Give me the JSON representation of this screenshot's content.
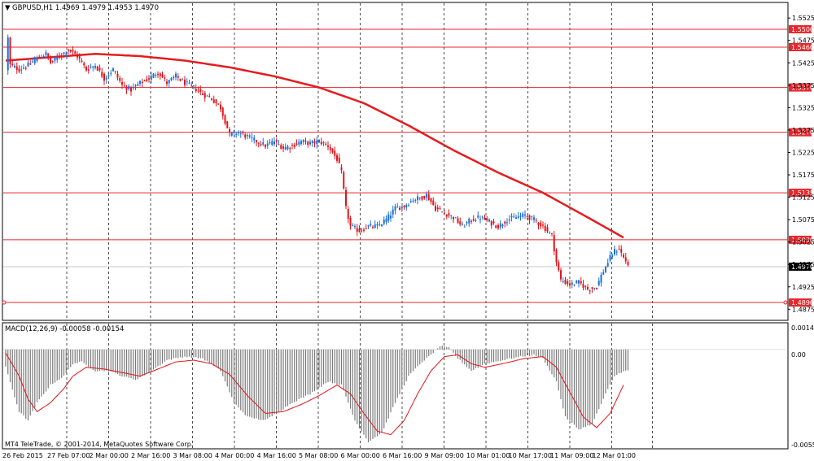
{
  "header": {
    "symbol_line": "GBPUSD,H1  1.4969 1.4979 1.4953 1.4970",
    "menu_glyph": "▼"
  },
  "macd": {
    "label": "MACD(12,26,9) -0.00058 -0.00154",
    "top_label": "0.00146",
    "zero_label": "0.00",
    "bottom_label": "-0.00555"
  },
  "copyright": "MT4 TeleTrade, © 2001-2014, MetaQuotes Software Corp.",
  "colors": {
    "bull": "#1e6fd9",
    "bear": "#e0151a",
    "level": "#e8262b",
    "ma": "#e51b1f",
    "hist": "#7a7a7a",
    "signal": "#e0151a",
    "grid": "#000000",
    "current_bg": "#000000"
  },
  "chart_data": {
    "type": "candlestick",
    "price_axis": {
      "min": 1.4852,
      "max": 1.5558,
      "ticks": [
        "1.5525",
        "1.5475",
        "1.5425",
        "1.5375",
        "1.5325",
        "1.5275",
        "1.5225",
        "1.5175",
        "1.5125",
        "1.5075",
        "1.5025",
        "1.4975",
        "1.4925",
        "1.4875"
      ]
    },
    "levels": [
      {
        "label": "1.5500",
        "value": 1.55
      },
      {
        "label": "1.5460",
        "value": 1.546
      },
      {
        "label": "1.5370",
        "value": 1.537
      },
      {
        "label": "1.5270",
        "value": 1.527
      },
      {
        "label": "1.5135",
        "value": 1.5135
      },
      {
        "label": "1.5030",
        "value": 1.503
      },
      {
        "label": "1.4890",
        "value": 1.489
      }
    ],
    "current_price": {
      "label": "1.4970",
      "value": 1.497
    },
    "x_labels": [
      "26 Feb 2015",
      "27 Feb 07:00",
      "2 Mar 00:00",
      "2 Mar 16:00",
      "3 Mar 08:00",
      "4 Mar 00:00",
      "4 Mar 16:00",
      "5 Mar 08:00",
      "6 Mar 00:00",
      "6 Mar 16:00",
      "9 Mar 09:00",
      "10 Mar 01:00",
      "10 Mar 17:00",
      "11 Mar 09:00",
      "12 Mar 01:00"
    ],
    "anchors": [
      [
        0,
        1.541
      ],
      [
        1,
        1.548
      ],
      [
        2,
        1.542
      ],
      [
        6,
        1.541
      ],
      [
        10,
        1.542
      ],
      [
        14,
        1.5435
      ],
      [
        18,
        1.5445
      ],
      [
        20,
        1.5425
      ],
      [
        24,
        1.544
      ],
      [
        28,
        1.5455
      ],
      [
        32,
        1.544
      ],
      [
        36,
        1.541
      ],
      [
        40,
        1.542
      ],
      [
        44,
        1.539
      ],
      [
        48,
        1.541
      ],
      [
        52,
        1.5375
      ],
      [
        56,
        1.5365
      ],
      [
        60,
        1.538
      ],
      [
        64,
        1.539
      ],
      [
        68,
        1.5405
      ],
      [
        72,
        1.538
      ],
      [
        76,
        1.5395
      ],
      [
        80,
        1.538
      ],
      [
        84,
        1.537
      ],
      [
        88,
        1.5355
      ],
      [
        92,
        1.5345
      ],
      [
        96,
        1.5325
      ],
      [
        100,
        1.5265
      ],
      [
        104,
        1.527
      ],
      [
        108,
        1.526
      ],
      [
        112,
        1.525
      ],
      [
        116,
        1.524
      ],
      [
        120,
        1.525
      ],
      [
        124,
        1.5235
      ],
      [
        128,
        1.524
      ],
      [
        132,
        1.525
      ],
      [
        136,
        1.5245
      ],
      [
        140,
        1.525
      ],
      [
        144,
        1.524
      ],
      [
        148,
        1.521
      ],
      [
        150,
        1.518
      ],
      [
        152,
        1.51
      ],
      [
        154,
        1.506
      ],
      [
        158,
        1.505
      ],
      [
        162,
        1.506
      ],
      [
        166,
        1.506
      ],
      [
        170,
        1.5075
      ],
      [
        174,
        1.51
      ],
      [
        178,
        1.5105
      ],
      [
        182,
        1.512
      ],
      [
        186,
        1.5125
      ],
      [
        188,
        1.513
      ],
      [
        192,
        1.51
      ],
      [
        196,
        1.509
      ],
      [
        200,
        1.508
      ],
      [
        204,
        1.506
      ],
      [
        208,
        1.5075
      ],
      [
        212,
        1.508
      ],
      [
        216,
        1.507
      ],
      [
        220,
        1.506
      ],
      [
        224,
        1.5075
      ],
      [
        228,
        1.508
      ],
      [
        232,
        1.5085
      ],
      [
        236,
        1.5075
      ],
      [
        240,
        1.506
      ],
      [
        244,
        1.504
      ],
      [
        246,
        1.498
      ],
      [
        248,
        1.494
      ],
      [
        252,
        1.493
      ],
      [
        256,
        1.4935
      ],
      [
        260,
        1.492
      ],
      [
        264,
        1.4925
      ],
      [
        266,
        1.495
      ],
      [
        270,
        1.499
      ],
      [
        272,
        1.5005
      ],
      [
        274,
        1.501
      ],
      [
        276,
        1.499
      ],
      [
        278,
        1.4975
      ]
    ],
    "moving_average": [
      [
        0,
        1.543
      ],
      [
        40,
        1.5445
      ],
      [
        60,
        1.544
      ],
      [
        80,
        1.543
      ],
      [
        100,
        1.5415
      ],
      [
        120,
        1.5395
      ],
      [
        140,
        1.537
      ],
      [
        160,
        1.5335
      ],
      [
        180,
        1.5285
      ],
      [
        200,
        1.523
      ],
      [
        220,
        1.518
      ],
      [
        240,
        1.5135
      ],
      [
        260,
        1.508
      ],
      [
        276,
        1.5035
      ]
    ],
    "macd_axis": {
      "min": -0.00555,
      "max": 0.00146
    },
    "macd_hist": [
      [
        0,
        -0.001
      ],
      [
        6,
        -0.0035
      ],
      [
        10,
        -0.004
      ],
      [
        14,
        -0.003
      ],
      [
        20,
        -0.002
      ],
      [
        26,
        -0.0015
      ],
      [
        30,
        -0.0008
      ],
      [
        34,
        -0.0007
      ],
      [
        40,
        -0.0012
      ],
      [
        46,
        -0.0012
      ],
      [
        52,
        -0.0015
      ],
      [
        58,
        -0.0017
      ],
      [
        64,
        -0.0013
      ],
      [
        72,
        -0.0006
      ],
      [
        80,
        -0.0004
      ],
      [
        88,
        -0.0005
      ],
      [
        96,
        -0.0012
      ],
      [
        102,
        -0.003
      ],
      [
        108,
        -0.0038
      ],
      [
        116,
        -0.004
      ],
      [
        122,
        -0.0035
      ],
      [
        128,
        -0.003
      ],
      [
        136,
        -0.0025
      ],
      [
        144,
        -0.0018
      ],
      [
        150,
        -0.002
      ],
      [
        156,
        -0.004
      ],
      [
        162,
        -0.0052
      ],
      [
        168,
        -0.0047
      ],
      [
        174,
        -0.003
      ],
      [
        180,
        -0.0015
      ],
      [
        186,
        -0.0007
      ],
      [
        190,
        -0.0003
      ],
      [
        194,
        0.0002
      ],
      [
        198,
        0.0001
      ],
      [
        202,
        -0.0005
      ],
      [
        208,
        -0.0012
      ],
      [
        214,
        -0.0008
      ],
      [
        222,
        -0.0006
      ],
      [
        230,
        -0.0004
      ],
      [
        236,
        -0.0003
      ],
      [
        240,
        -0.0005
      ],
      [
        246,
        -0.0018
      ],
      [
        250,
        -0.0038
      ],
      [
        256,
        -0.0045
      ],
      [
        262,
        -0.0042
      ],
      [
        268,
        -0.0025
      ],
      [
        272,
        -0.0015
      ],
      [
        276,
        -0.0012
      ]
    ],
    "macd_signal": [
      [
        0,
        -0.0002
      ],
      [
        6,
        -0.0015
      ],
      [
        10,
        -0.0028
      ],
      [
        14,
        -0.0035
      ],
      [
        20,
        -0.003
      ],
      [
        26,
        -0.0022
      ],
      [
        30,
        -0.0015
      ],
      [
        36,
        -0.001
      ],
      [
        44,
        -0.0011
      ],
      [
        52,
        -0.0013
      ],
      [
        60,
        -0.0015
      ],
      [
        68,
        -0.0011
      ],
      [
        76,
        -0.0007
      ],
      [
        84,
        -0.0006
      ],
      [
        92,
        -0.0008
      ],
      [
        100,
        -0.0014
      ],
      [
        108,
        -0.0026
      ],
      [
        116,
        -0.0036
      ],
      [
        124,
        -0.0035
      ],
      [
        132,
        -0.0031
      ],
      [
        140,
        -0.0026
      ],
      [
        148,
        -0.002
      ],
      [
        154,
        -0.0025
      ],
      [
        160,
        -0.0036
      ],
      [
        166,
        -0.0046
      ],
      [
        172,
        -0.0048
      ],
      [
        178,
        -0.004
      ],
      [
        184,
        -0.0025
      ],
      [
        190,
        -0.0012
      ],
      [
        196,
        -0.0004
      ],
      [
        202,
        -0.0003
      ],
      [
        208,
        -0.0008
      ],
      [
        214,
        -0.001
      ],
      [
        222,
        -0.0008
      ],
      [
        232,
        -0.0005
      ],
      [
        240,
        -0.0004
      ],
      [
        246,
        -0.001
      ],
      [
        252,
        -0.0024
      ],
      [
        258,
        -0.0038
      ],
      [
        264,
        -0.0044
      ],
      [
        270,
        -0.0036
      ],
      [
        276,
        -0.002
      ]
    ]
  }
}
